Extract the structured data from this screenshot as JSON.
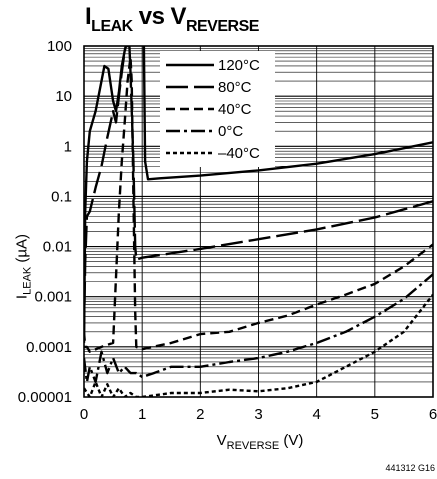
{
  "chart_data": {
    "type": "line",
    "title": {
      "main": "I",
      "main_sub": "LEAK",
      "vs": "vs",
      "second": "V",
      "second_sub": "REVERSE"
    },
    "xlabel": {
      "main": "V",
      "sub": "REVERSE",
      "unit": " (V)"
    },
    "ylabel": {
      "main": "I",
      "sub": "LEAK",
      "unit": " (µA)"
    },
    "xlim": [
      0,
      6
    ],
    "ylim": [
      1e-05,
      100
    ],
    "yscale": "log",
    "grid": true,
    "x_ticks": [
      "0",
      "1",
      "2",
      "3",
      "4",
      "5",
      "6"
    ],
    "y_ticks": [
      "100",
      "10",
      "1",
      "0.1",
      "0.01",
      "0.001",
      "0.0001",
      "0.00001"
    ],
    "legend_position": "top-right",
    "series": [
      {
        "name": "120°C",
        "dash": "solid",
        "points": [
          [
            0.0,
            0.00012
          ],
          [
            0.02,
            0.05
          ],
          [
            0.05,
            0.5
          ],
          [
            0.1,
            2
          ],
          [
            0.2,
            5
          ],
          [
            0.3,
            20
          ],
          [
            0.35,
            40
          ],
          [
            0.42,
            35
          ],
          [
            0.5,
            8
          ],
          [
            0.55,
            5
          ],
          [
            0.6,
            12
          ],
          [
            0.65,
            40
          ],
          [
            0.7,
            80
          ],
          [
            0.72,
            100
          ]
        ],
        "points2": [
          [
            1.03,
            100
          ],
          [
            1.05,
            0.5
          ],
          [
            1.1,
            0.22
          ],
          [
            1.3,
            0.23
          ],
          [
            2,
            0.26
          ],
          [
            3,
            0.33
          ],
          [
            4,
            0.45
          ],
          [
            5,
            0.7
          ],
          [
            6,
            1.2
          ]
        ]
      },
      {
        "name": "80°C",
        "dash": "long-dash",
        "points": [
          [
            0.0,
            0.0002
          ],
          [
            0.02,
            0.005
          ],
          [
            0.05,
            0.04
          ],
          [
            0.1,
            0.05
          ],
          [
            0.2,
            0.15
          ],
          [
            0.3,
            0.4
          ],
          [
            0.4,
            1.5
          ],
          [
            0.5,
            5
          ],
          [
            0.55,
            3
          ],
          [
            0.6,
            10
          ],
          [
            0.65,
            30
          ],
          [
            0.7,
            80
          ],
          [
            0.72,
            100
          ],
          [
            0.78,
            100
          ],
          [
            0.8,
            30
          ],
          [
            0.85,
            0.5
          ],
          [
            0.88,
            0.01
          ],
          [
            0.9,
            0.0055
          ],
          [
            1,
            0.006
          ],
          [
            2,
            0.009
          ],
          [
            3,
            0.014
          ],
          [
            4,
            0.022
          ],
          [
            5,
            0.038
          ],
          [
            6,
            0.08
          ]
        ]
      },
      {
        "name": "40°C",
        "dash": "dash",
        "points": [
          [
            0.0,
            0.0002
          ],
          [
            0.02,
            0.0001
          ],
          [
            0.05,
            0.0001
          ],
          [
            0.1,
            8e-05
          ],
          [
            0.3,
            0.0001
          ],
          [
            0.5,
            0.00012
          ],
          [
            0.6,
            0.05
          ],
          [
            0.65,
            0.5
          ],
          [
            0.7,
            3
          ],
          [
            0.75,
            20
          ],
          [
            0.8,
            60
          ],
          [
            0.82,
            20
          ],
          [
            0.85,
            0.1
          ],
          [
            0.88,
            0.0005
          ],
          [
            0.9,
            0.0001
          ],
          [
            1,
            9e-05
          ],
          [
            1.5,
            0.00012
          ],
          [
            2,
            0.00018
          ],
          [
            2.5,
            0.0002
          ],
          [
            3,
            0.0003
          ],
          [
            3.5,
            0.00042
          ],
          [
            4,
            0.0007
          ],
          [
            4.5,
            0.0011
          ],
          [
            5,
            0.0018
          ],
          [
            5.5,
            0.004
          ],
          [
            6,
            0.011
          ]
        ]
      },
      {
        "name": "0°C",
        "dash": "dash-dot",
        "points": [
          [
            0.0,
            6e-05
          ],
          [
            0.05,
            2e-05
          ],
          [
            0.1,
            4e-05
          ],
          [
            0.2,
            2e-05
          ],
          [
            0.3,
            8e-05
          ],
          [
            0.4,
            3e-05
          ],
          [
            0.5,
            6e-05
          ],
          [
            0.6,
            3e-05
          ],
          [
            0.7,
            4e-05
          ],
          [
            0.8,
            3e-05
          ],
          [
            0.9,
            3e-05
          ],
          [
            1.0,
            2.5e-05
          ],
          [
            1.2,
            3e-05
          ],
          [
            1.5,
            4e-05
          ],
          [
            2,
            4e-05
          ],
          [
            2.5,
            5e-05
          ],
          [
            3,
            6e-05
          ],
          [
            3.5,
            8e-05
          ],
          [
            4,
            0.00012
          ],
          [
            4.5,
            0.0002
          ],
          [
            5,
            0.0004
          ],
          [
            5.5,
            0.0009
          ],
          [
            6,
            0.0028
          ]
        ]
      },
      {
        "name": "–40°C",
        "dash": "dot",
        "points": [
          [
            0.0,
            1.5e-05
          ],
          [
            0.1,
            1e-05
          ],
          [
            0.2,
            2e-05
          ],
          [
            0.3,
            1e-05
          ],
          [
            0.4,
            1.8e-05
          ],
          [
            0.5,
            1e-05
          ],
          [
            0.6,
            1.5e-05
          ],
          [
            0.7,
            1e-05
          ],
          [
            0.8,
            1.2e-05
          ],
          [
            0.9,
            1e-05
          ],
          [
            1.0,
            1e-05
          ],
          [
            1.5,
            1.2e-05
          ],
          [
            2,
            1.2e-05
          ],
          [
            2.5,
            1.4e-05
          ],
          [
            3,
            1.3e-05
          ],
          [
            3.5,
            1.5e-05
          ],
          [
            4,
            2e-05
          ],
          [
            4.5,
            4e-05
          ],
          [
            5,
            8e-05
          ],
          [
            5.5,
            0.0002
          ],
          [
            6,
            0.0011
          ]
        ]
      }
    ]
  },
  "figure_id": "441312 G16"
}
